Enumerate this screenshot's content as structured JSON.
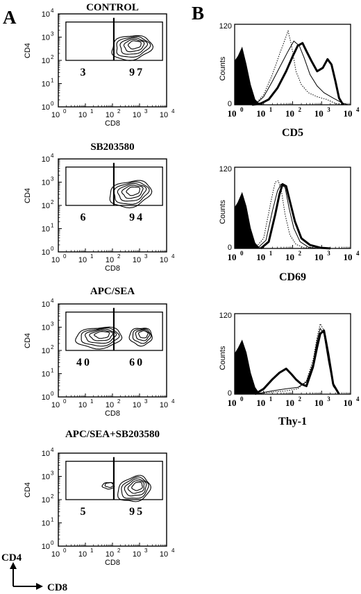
{
  "figure": {
    "panel_a_label": "A",
    "panel_b_label": "B",
    "orientation_y": "CD4",
    "orientation_x": "CD8"
  },
  "colors": {
    "ink": "#000000",
    "paper": "#ffffff"
  },
  "chart_data": [
    {
      "type": "scatter",
      "panel": "A",
      "title": "CONTROL",
      "xlabel": "CD8",
      "ylabel": "CD4",
      "log_scale": true,
      "xlim": [
        1,
        10000
      ],
      "ylim": [
        1,
        10000
      ],
      "x_ticks": [
        "10",
        "10",
        "10",
        "10",
        "10"
      ],
      "x_tick_exponents": [
        "0",
        "1",
        "2",
        "3",
        "4"
      ],
      "y_ticks": [
        "10",
        "10",
        "10",
        "10",
        "10"
      ],
      "y_tick_exponents": [
        "0",
        "1",
        "2",
        "3",
        "4"
      ],
      "gate_percentages": [
        "3",
        "97"
      ],
      "gate_left": 3,
      "gate_right": 97
    },
    {
      "type": "scatter",
      "panel": "A",
      "title": "SB203580",
      "xlabel": "CD8",
      "ylabel": "CD4",
      "log_scale": true,
      "xlim": [
        1,
        10000
      ],
      "ylim": [
        1,
        10000
      ],
      "x_ticks": [
        "10",
        "10",
        "10",
        "10",
        "10"
      ],
      "x_tick_exponents": [
        "0",
        "1",
        "2",
        "3",
        "4"
      ],
      "y_ticks": [
        "10",
        "10",
        "10",
        "10",
        "10"
      ],
      "y_tick_exponents": [
        "0",
        "1",
        "2",
        "3",
        "4"
      ],
      "gate_percentages": [
        "6",
        "94"
      ],
      "gate_left": 6,
      "gate_right": 94
    },
    {
      "type": "scatter",
      "panel": "A",
      "title": "APC/SEA",
      "xlabel": "CD8",
      "ylabel": "CD4",
      "log_scale": true,
      "xlim": [
        1,
        10000
      ],
      "ylim": [
        1,
        10000
      ],
      "x_ticks": [
        "10",
        "10",
        "10",
        "10",
        "10"
      ],
      "x_tick_exponents": [
        "0",
        "1",
        "2",
        "3",
        "4"
      ],
      "y_ticks": [
        "10",
        "10",
        "10",
        "10",
        "10"
      ],
      "y_tick_exponents": [
        "0",
        "1",
        "2",
        "3",
        "4"
      ],
      "gate_percentages": [
        "40",
        "60"
      ],
      "gate_left": 40,
      "gate_right": 60
    },
    {
      "type": "scatter",
      "panel": "A",
      "title": "APC/SEA+SB203580",
      "xlabel": "CD8",
      "ylabel": "CD4",
      "log_scale": true,
      "xlim": [
        1,
        10000
      ],
      "ylim": [
        1,
        10000
      ],
      "x_ticks": [
        "10",
        "10",
        "10",
        "10",
        "10"
      ],
      "x_tick_exponents": [
        "0",
        "1",
        "2",
        "3",
        "4"
      ],
      "y_ticks": [
        "10",
        "10",
        "10",
        "10",
        "10"
      ],
      "y_tick_exponents": [
        "0",
        "1",
        "2",
        "3",
        "4"
      ],
      "gate_percentages": [
        "5",
        "95"
      ],
      "gate_left": 5,
      "gate_right": 95
    },
    {
      "type": "line",
      "panel": "B",
      "xlabel": "CD5",
      "ylabel": "Counts",
      "log_scale": true,
      "xlim": [
        1,
        10000
      ],
      "ylim": [
        0,
        120
      ],
      "x_ticks": [
        "10",
        "10",
        "10",
        "10",
        "10"
      ],
      "x_tick_exponents": [
        "0",
        "1",
        "2",
        "3",
        "4"
      ],
      "y_ticks": [
        "0",
        "120"
      ],
      "series": [
        {
          "style": "filled",
          "x": [
            1,
            1.3,
            1.8,
            2.5,
            3.5,
            5,
            7,
            10
          ],
          "y": [
            65,
            72,
            85,
            60,
            30,
            8,
            1,
            0
          ]
        },
        {
          "style": "dotted",
          "x": [
            3,
            6,
            10,
            20,
            35,
            55,
            70,
            90,
            130,
            200,
            350,
            700,
            1500,
            3000,
            6000
          ],
          "y": [
            0,
            4,
            15,
            45,
            75,
            98,
            110,
            90,
            50,
            30,
            18,
            12,
            8,
            2,
            0
          ]
        },
        {
          "style": "thin",
          "x": [
            3,
            6,
            10,
            20,
            40,
            70,
            110,
            170,
            250,
            400,
            700,
            1200,
            2500,
            5000,
            8000
          ],
          "y": [
            0,
            3,
            12,
            35,
            60,
            80,
            95,
            88,
            70,
            45,
            28,
            18,
            10,
            3,
            0
          ]
        },
        {
          "style": "bold",
          "x": [
            4,
            8,
            15,
            30,
            60,
            100,
            150,
            220,
            300,
            450,
            700,
            1100,
            1600,
            2200,
            3000,
            4000,
            5500
          ],
          "y": [
            0,
            2,
            8,
            25,
            50,
            72,
            88,
            92,
            80,
            65,
            50,
            55,
            68,
            60,
            35,
            10,
            0
          ]
        }
      ]
    },
    {
      "type": "line",
      "panel": "B",
      "xlabel": "CD69",
      "ylabel": "Counts",
      "log_scale": true,
      "xlim": [
        1,
        10000
      ],
      "ylim": [
        0,
        120
      ],
      "x_ticks": [
        "10",
        "10",
        "10",
        "10",
        "10"
      ],
      "x_tick_exponents": [
        "0",
        "1",
        "2",
        "3",
        "4"
      ],
      "y_ticks": [
        "0",
        "120"
      ],
      "series": [
        {
          "style": "filled",
          "x": [
            1,
            1.3,
            1.8,
            2.5,
            3.5,
            5,
            7,
            10
          ],
          "y": [
            60,
            68,
            82,
            62,
            30,
            8,
            1,
            0
          ]
        },
        {
          "style": "dotted",
          "x": [
            5,
            10,
            18,
            25,
            32,
            40,
            55,
            80,
            130,
            250,
            500
          ],
          "y": [
            0,
            15,
            70,
            98,
            100,
            88,
            50,
            20,
            6,
            1,
            0
          ]
        },
        {
          "style": "thin",
          "x": [
            6,
            12,
            20,
            30,
            40,
            55,
            75,
            110,
            180,
            350,
            700
          ],
          "y": [
            0,
            12,
            55,
            85,
            95,
            90,
            60,
            30,
            10,
            2,
            0
          ]
        },
        {
          "style": "bold",
          "x": [
            8,
            15,
            25,
            35,
            45,
            60,
            80,
            120,
            200,
            400,
            900,
            2000
          ],
          "y": [
            0,
            10,
            50,
            80,
            95,
            92,
            70,
            40,
            15,
            5,
            1,
            0
          ]
        }
      ]
    },
    {
      "type": "line",
      "panel": "B",
      "xlabel": "Thy-1",
      "ylabel": "Counts",
      "log_scale": true,
      "xlim": [
        1,
        10000
      ],
      "ylim": [
        0,
        120
      ],
      "x_ticks": [
        "10",
        "10",
        "10",
        "10",
        "10"
      ],
      "x_tick_exponents": [
        "0",
        "1",
        "2",
        "3",
        "4"
      ],
      "y_ticks": [
        "0",
        "120"
      ],
      "series": [
        {
          "style": "filled",
          "x": [
            1,
            1.3,
            1.8,
            2.5,
            3.5,
            5,
            7,
            10
          ],
          "y": [
            60,
            68,
            80,
            62,
            32,
            10,
            1,
            0
          ]
        },
        {
          "style": "dotted",
          "x": [
            5,
            20,
            60,
            150,
            300,
            500,
            700,
            900,
            1200,
            1700,
            2500,
            4000
          ],
          "y": [
            0,
            3,
            5,
            8,
            20,
            50,
            85,
            105,
            95,
            55,
            15,
            0
          ]
        },
        {
          "style": "thin",
          "x": [
            5,
            20,
            60,
            150,
            300,
            500,
            700,
            900,
            1200,
            1700,
            2500,
            4000
          ],
          "y": [
            0,
            5,
            8,
            10,
            18,
            45,
            80,
            98,
            90,
            50,
            12,
            0
          ]
        },
        {
          "style": "bold",
          "x": [
            5,
            10,
            20,
            35,
            60,
            90,
            130,
            200,
            300,
            500,
            700,
            900,
            1200,
            1700,
            2500,
            4000
          ],
          "y": [
            0,
            8,
            22,
            32,
            38,
            30,
            22,
            15,
            12,
            40,
            70,
            90,
            95,
            60,
            15,
            0
          ]
        }
      ]
    }
  ]
}
